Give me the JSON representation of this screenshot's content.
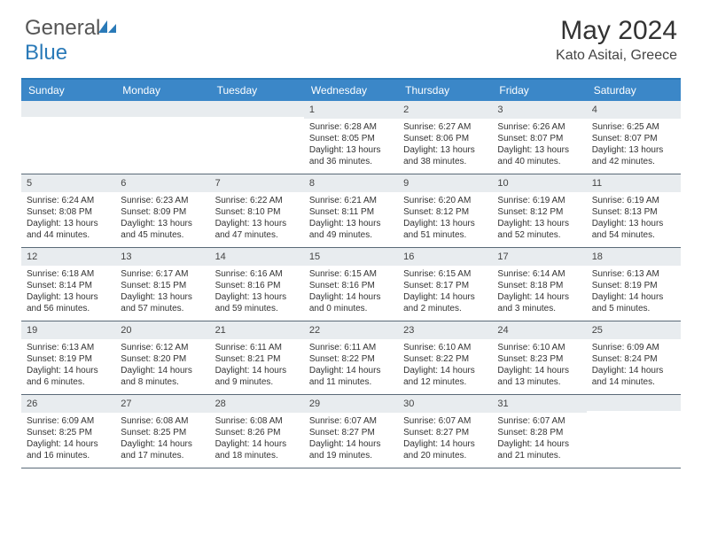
{
  "logo": {
    "text_gray": "General",
    "text_blue": "Blue"
  },
  "title": "May 2024",
  "location": "Kato Asitai, Greece",
  "colors": {
    "header_bar": "#3b87c8",
    "accent_line": "#2a7ab8",
    "daynum_bg": "#e8ecef",
    "row_border": "#5a6a78",
    "text": "#333333",
    "logo_gray": "#555555",
    "logo_blue": "#2a7ab8"
  },
  "weekdays": [
    "Sunday",
    "Monday",
    "Tuesday",
    "Wednesday",
    "Thursday",
    "Friday",
    "Saturday"
  ],
  "weeks": [
    [
      {
        "n": "",
        "lines": []
      },
      {
        "n": "",
        "lines": []
      },
      {
        "n": "",
        "lines": []
      },
      {
        "n": "1",
        "lines": [
          "Sunrise: 6:28 AM",
          "Sunset: 8:05 PM",
          "Daylight: 13 hours",
          "and 36 minutes."
        ]
      },
      {
        "n": "2",
        "lines": [
          "Sunrise: 6:27 AM",
          "Sunset: 8:06 PM",
          "Daylight: 13 hours",
          "and 38 minutes."
        ]
      },
      {
        "n": "3",
        "lines": [
          "Sunrise: 6:26 AM",
          "Sunset: 8:07 PM",
          "Daylight: 13 hours",
          "and 40 minutes."
        ]
      },
      {
        "n": "4",
        "lines": [
          "Sunrise: 6:25 AM",
          "Sunset: 8:07 PM",
          "Daylight: 13 hours",
          "and 42 minutes."
        ]
      }
    ],
    [
      {
        "n": "5",
        "lines": [
          "Sunrise: 6:24 AM",
          "Sunset: 8:08 PM",
          "Daylight: 13 hours",
          "and 44 minutes."
        ]
      },
      {
        "n": "6",
        "lines": [
          "Sunrise: 6:23 AM",
          "Sunset: 8:09 PM",
          "Daylight: 13 hours",
          "and 45 minutes."
        ]
      },
      {
        "n": "7",
        "lines": [
          "Sunrise: 6:22 AM",
          "Sunset: 8:10 PM",
          "Daylight: 13 hours",
          "and 47 minutes."
        ]
      },
      {
        "n": "8",
        "lines": [
          "Sunrise: 6:21 AM",
          "Sunset: 8:11 PM",
          "Daylight: 13 hours",
          "and 49 minutes."
        ]
      },
      {
        "n": "9",
        "lines": [
          "Sunrise: 6:20 AM",
          "Sunset: 8:12 PM",
          "Daylight: 13 hours",
          "and 51 minutes."
        ]
      },
      {
        "n": "10",
        "lines": [
          "Sunrise: 6:19 AM",
          "Sunset: 8:12 PM",
          "Daylight: 13 hours",
          "and 52 minutes."
        ]
      },
      {
        "n": "11",
        "lines": [
          "Sunrise: 6:19 AM",
          "Sunset: 8:13 PM",
          "Daylight: 13 hours",
          "and 54 minutes."
        ]
      }
    ],
    [
      {
        "n": "12",
        "lines": [
          "Sunrise: 6:18 AM",
          "Sunset: 8:14 PM",
          "Daylight: 13 hours",
          "and 56 minutes."
        ]
      },
      {
        "n": "13",
        "lines": [
          "Sunrise: 6:17 AM",
          "Sunset: 8:15 PM",
          "Daylight: 13 hours",
          "and 57 minutes."
        ]
      },
      {
        "n": "14",
        "lines": [
          "Sunrise: 6:16 AM",
          "Sunset: 8:16 PM",
          "Daylight: 13 hours",
          "and 59 minutes."
        ]
      },
      {
        "n": "15",
        "lines": [
          "Sunrise: 6:15 AM",
          "Sunset: 8:16 PM",
          "Daylight: 14 hours",
          "and 0 minutes."
        ]
      },
      {
        "n": "16",
        "lines": [
          "Sunrise: 6:15 AM",
          "Sunset: 8:17 PM",
          "Daylight: 14 hours",
          "and 2 minutes."
        ]
      },
      {
        "n": "17",
        "lines": [
          "Sunrise: 6:14 AM",
          "Sunset: 8:18 PM",
          "Daylight: 14 hours",
          "and 3 minutes."
        ]
      },
      {
        "n": "18",
        "lines": [
          "Sunrise: 6:13 AM",
          "Sunset: 8:19 PM",
          "Daylight: 14 hours",
          "and 5 minutes."
        ]
      }
    ],
    [
      {
        "n": "19",
        "lines": [
          "Sunrise: 6:13 AM",
          "Sunset: 8:19 PM",
          "Daylight: 14 hours",
          "and 6 minutes."
        ]
      },
      {
        "n": "20",
        "lines": [
          "Sunrise: 6:12 AM",
          "Sunset: 8:20 PM",
          "Daylight: 14 hours",
          "and 8 minutes."
        ]
      },
      {
        "n": "21",
        "lines": [
          "Sunrise: 6:11 AM",
          "Sunset: 8:21 PM",
          "Daylight: 14 hours",
          "and 9 minutes."
        ]
      },
      {
        "n": "22",
        "lines": [
          "Sunrise: 6:11 AM",
          "Sunset: 8:22 PM",
          "Daylight: 14 hours",
          "and 11 minutes."
        ]
      },
      {
        "n": "23",
        "lines": [
          "Sunrise: 6:10 AM",
          "Sunset: 8:22 PM",
          "Daylight: 14 hours",
          "and 12 minutes."
        ]
      },
      {
        "n": "24",
        "lines": [
          "Sunrise: 6:10 AM",
          "Sunset: 8:23 PM",
          "Daylight: 14 hours",
          "and 13 minutes."
        ]
      },
      {
        "n": "25",
        "lines": [
          "Sunrise: 6:09 AM",
          "Sunset: 8:24 PM",
          "Daylight: 14 hours",
          "and 14 minutes."
        ]
      }
    ],
    [
      {
        "n": "26",
        "lines": [
          "Sunrise: 6:09 AM",
          "Sunset: 8:25 PM",
          "Daylight: 14 hours",
          "and 16 minutes."
        ]
      },
      {
        "n": "27",
        "lines": [
          "Sunrise: 6:08 AM",
          "Sunset: 8:25 PM",
          "Daylight: 14 hours",
          "and 17 minutes."
        ]
      },
      {
        "n": "28",
        "lines": [
          "Sunrise: 6:08 AM",
          "Sunset: 8:26 PM",
          "Daylight: 14 hours",
          "and 18 minutes."
        ]
      },
      {
        "n": "29",
        "lines": [
          "Sunrise: 6:07 AM",
          "Sunset: 8:27 PM",
          "Daylight: 14 hours",
          "and 19 minutes."
        ]
      },
      {
        "n": "30",
        "lines": [
          "Sunrise: 6:07 AM",
          "Sunset: 8:27 PM",
          "Daylight: 14 hours",
          "and 20 minutes."
        ]
      },
      {
        "n": "31",
        "lines": [
          "Sunrise: 6:07 AM",
          "Sunset: 8:28 PM",
          "Daylight: 14 hours",
          "and 21 minutes."
        ]
      },
      {
        "n": "",
        "lines": []
      }
    ]
  ]
}
